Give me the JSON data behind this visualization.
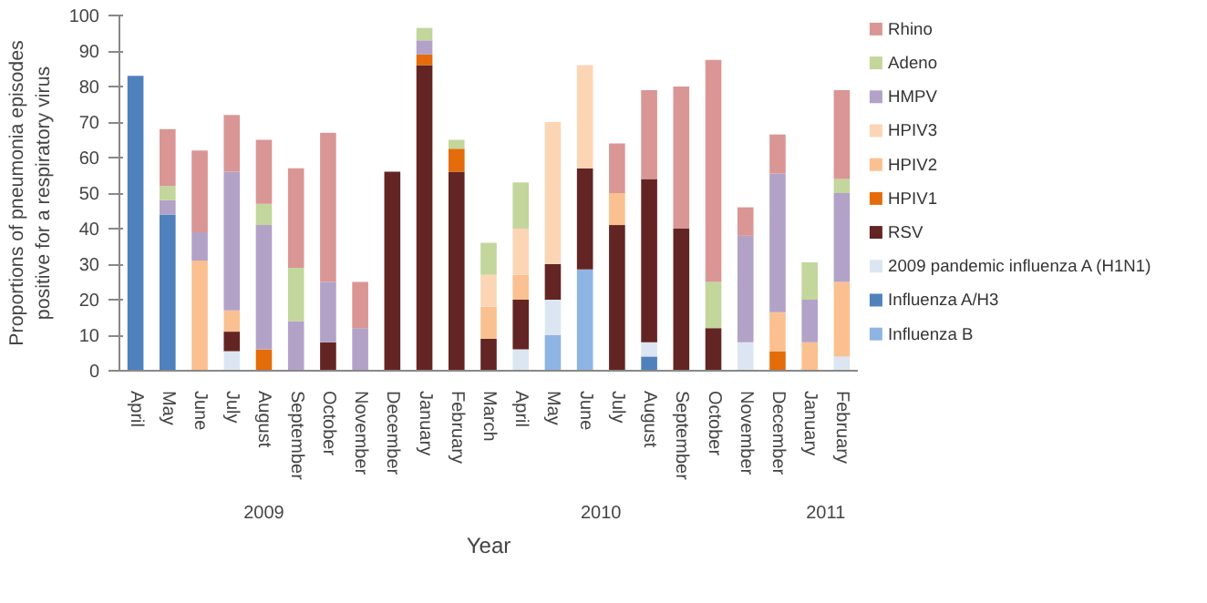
{
  "chart_data": {
    "type": "bar",
    "stacked": true,
    "xlabel": "Year",
    "ylabel": "Proportions of pneumonia episodes positive for a respiratory virus",
    "categories": [
      "April",
      "May",
      "June",
      "July",
      "August",
      "September",
      "October",
      "November",
      "December",
      "January",
      "February",
      "March",
      "April",
      "May",
      "June",
      "July",
      "August",
      "September",
      "October",
      "November",
      "December",
      "January",
      "February"
    ],
    "annotations": [
      "2009",
      "2010",
      "2011"
    ],
    "ylim": [
      0,
      100
    ],
    "yticks": [
      0,
      10,
      20,
      30,
      40,
      50,
      60,
      70,
      80,
      90,
      100
    ],
    "grid": false,
    "legend": "right",
    "series": [
      {
        "name": "Influenza B",
        "color": "#8eb4e3",
        "values": [
          null,
          null,
          null,
          null,
          null,
          null,
          null,
          null,
          null,
          null,
          null,
          null,
          null,
          10,
          28.5,
          null,
          null,
          null,
          null,
          null,
          null,
          null,
          null
        ]
      },
      {
        "name": "Influenza A/H3",
        "color": "#4f81bd",
        "values": [
          83,
          44,
          null,
          null,
          null,
          null,
          null,
          null,
          null,
          null,
          null,
          null,
          null,
          null,
          null,
          null,
          4,
          null,
          null,
          null,
          null,
          null,
          null
        ]
      },
      {
        "name": "2009 pandemic influenza A (H1N1)",
        "color": "#dce6f2",
        "values": [
          null,
          null,
          null,
          5.5,
          null,
          null,
          null,
          null,
          null,
          null,
          null,
          null,
          6,
          10,
          null,
          null,
          4,
          null,
          null,
          8,
          null,
          null,
          4
        ]
      },
      {
        "name": "RSV",
        "color": "#632523",
        "values": [
          null,
          null,
          null,
          5.5,
          null,
          null,
          8,
          null,
          56,
          86,
          56,
          9,
          14,
          10,
          28.5,
          41,
          46,
          40,
          12,
          null,
          null,
          null,
          null
        ]
      },
      {
        "name": "HPIV1",
        "color": "#e46c0a",
        "values": [
          null,
          null,
          null,
          null,
          6,
          null,
          null,
          null,
          null,
          3,
          6.5,
          null,
          null,
          null,
          null,
          null,
          null,
          null,
          null,
          null,
          5.5,
          null,
          null
        ]
      },
      {
        "name": "HPIV2",
        "color": "#fac090",
        "values": [
          null,
          null,
          31,
          6,
          null,
          null,
          null,
          null,
          null,
          null,
          null,
          9,
          7,
          null,
          null,
          9,
          null,
          null,
          null,
          null,
          11,
          8,
          21
        ]
      },
      {
        "name": "HPIV3",
        "color": "#fcd5b5",
        "values": [
          null,
          null,
          null,
          null,
          null,
          null,
          null,
          null,
          null,
          null,
          null,
          9,
          13,
          40,
          29,
          null,
          null,
          null,
          null,
          null,
          null,
          null,
          null
        ]
      },
      {
        "name": "HMPV",
        "color": "#b3a2c7",
        "values": [
          null,
          4,
          8,
          39,
          35,
          14,
          17,
          12,
          null,
          4,
          null,
          null,
          null,
          null,
          null,
          null,
          null,
          null,
          null,
          30,
          39,
          12,
          25
        ]
      },
      {
        "name": "Adeno",
        "color": "#c3d69b",
        "values": [
          null,
          4,
          null,
          null,
          6,
          15,
          null,
          null,
          null,
          3.5,
          2.5,
          9,
          13,
          null,
          null,
          null,
          null,
          null,
          13,
          null,
          null,
          10.5,
          4
        ]
      },
      {
        "name": "Rhino",
        "color": "#d99694",
        "values": [
          null,
          16,
          23,
          16,
          18,
          28,
          42,
          13,
          null,
          null,
          null,
          null,
          null,
          null,
          null,
          14,
          25,
          40,
          62.5,
          8,
          11,
          null,
          25
        ]
      }
    ]
  }
}
